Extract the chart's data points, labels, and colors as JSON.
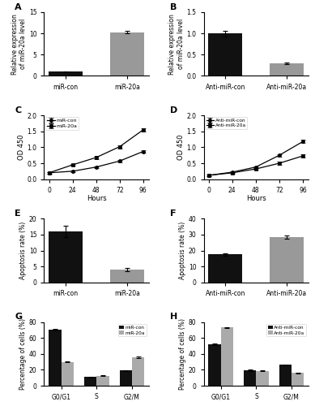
{
  "panel_A": {
    "categories": [
      "miR-con",
      "miR-20a"
    ],
    "values": [
      1.0,
      10.3
    ],
    "errors": [
      0.05,
      0.35
    ],
    "colors": [
      "#111111",
      "#999999"
    ],
    "ylabel": "Relative expression\nof miR-20a level",
    "ylim": [
      0,
      15
    ],
    "yticks": [
      0,
      5,
      10,
      15
    ],
    "label": "A"
  },
  "panel_B": {
    "categories": [
      "Anti-miR-con",
      "Anti-miR-20a"
    ],
    "values": [
      1.0,
      0.3
    ],
    "errors": [
      0.07,
      0.02
    ],
    "colors": [
      "#111111",
      "#999999"
    ],
    "ylabel": "Relative expression\nof miR-20a level",
    "ylim": [
      0,
      1.5
    ],
    "yticks": [
      0.0,
      0.5,
      1.0,
      1.5
    ],
    "label": "B"
  },
  "panel_C": {
    "hours": [
      0,
      24,
      48,
      72,
      96
    ],
    "mircon_values": [
      0.2,
      0.25,
      0.38,
      0.57,
      0.87
    ],
    "mircon_errors": [
      0.02,
      0.02,
      0.03,
      0.04,
      0.04
    ],
    "mir20a_values": [
      0.2,
      0.45,
      0.68,
      1.02,
      1.55
    ],
    "mir20a_errors": [
      0.02,
      0.03,
      0.04,
      0.05,
      0.05
    ],
    "ylabel": "OD 450",
    "xlabel": "Hours",
    "ylim": [
      0,
      2
    ],
    "yticks": [
      0,
      0.5,
      1.0,
      1.5,
      2.0
    ],
    "legend": [
      "miR-con",
      "miR-20a"
    ],
    "label": "C"
  },
  "panel_D": {
    "hours": [
      0,
      24,
      48,
      72,
      96
    ],
    "antimircon_values": [
      0.12,
      0.22,
      0.38,
      0.75,
      1.18
    ],
    "antimircon_errors": [
      0.02,
      0.02,
      0.03,
      0.04,
      0.05
    ],
    "antimir20a_values": [
      0.12,
      0.2,
      0.32,
      0.5,
      0.73
    ],
    "antimir20a_errors": [
      0.02,
      0.02,
      0.03,
      0.04,
      0.04
    ],
    "ylabel": "OD 450",
    "xlabel": "Hours",
    "ylim": [
      0,
      2
    ],
    "yticks": [
      0,
      0.5,
      1.0,
      1.5,
      2.0
    ],
    "legend": [
      "Anti-miR-con",
      "Anti-miR-20a"
    ],
    "label": "D"
  },
  "panel_E": {
    "categories": [
      "miR-con",
      "miR-20a"
    ],
    "values": [
      16.0,
      4.0
    ],
    "errors": [
      1.8,
      0.6
    ],
    "colors": [
      "#111111",
      "#999999"
    ],
    "ylabel": "Apoptosis rate (%)",
    "ylim": [
      0,
      20
    ],
    "yticks": [
      0,
      5,
      10,
      15,
      20
    ],
    "label": "E"
  },
  "panel_F": {
    "categories": [
      "Anti-miR-con",
      "Anti-miR-20a"
    ],
    "values": [
      17.5,
      28.5
    ],
    "errors": [
      0.8,
      1.0
    ],
    "colors": [
      "#111111",
      "#999999"
    ],
    "ylabel": "Apoptosis rate (%)",
    "ylim": [
      0,
      40
    ],
    "yticks": [
      0,
      10,
      20,
      30,
      40
    ],
    "label": "F"
  },
  "panel_G": {
    "phases": [
      "G0/G1",
      "S",
      "G2/M"
    ],
    "mircon_values": [
      70.5,
      11.0,
      19.0
    ],
    "mircon_errors": [
      0.8,
      0.6,
      0.7
    ],
    "mir20a_values": [
      30.0,
      12.5,
      35.5
    ],
    "mir20a_errors": [
      0.8,
      0.6,
      0.7
    ],
    "colors": [
      "#111111",
      "#aaaaaa"
    ],
    "ylabel": "Percentage of cells (%)",
    "ylim": [
      0,
      80
    ],
    "yticks": [
      0,
      20,
      40,
      60,
      80
    ],
    "legend": [
      "miR-con",
      "miR-20a"
    ],
    "label": "G"
  },
  "panel_H": {
    "phases": [
      "G0/G1",
      "S",
      "G2/M"
    ],
    "antimircon_values": [
      52.0,
      19.5,
      26.0
    ],
    "antimircon_errors": [
      1.0,
      0.8,
      0.8
    ],
    "antimir20a_values": [
      73.0,
      18.5,
      16.0
    ],
    "antimir20a_errors": [
      0.8,
      0.6,
      0.7
    ],
    "colors": [
      "#111111",
      "#aaaaaa"
    ],
    "ylabel": "Percentage of cells (%)",
    "ylim": [
      0,
      80
    ],
    "yticks": [
      0,
      20,
      40,
      60,
      80
    ],
    "legend": [
      "Anti-miR-con",
      "Anti-miR-20a"
    ],
    "label": "H"
  }
}
